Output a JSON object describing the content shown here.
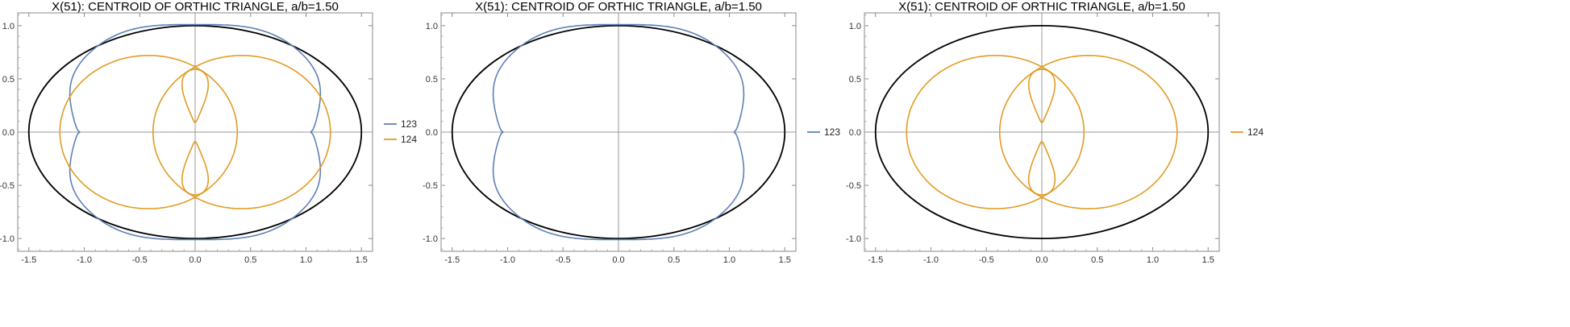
{
  "chart_data": [
    {
      "type": "line",
      "title": "X(51): CENTROID OF ORTHIC TRIANGLE, a/b=1.50",
      "xlim": [
        -1.6,
        1.6
      ],
      "ylim": [
        -1.12,
        1.12
      ],
      "xticks": [
        -1.5,
        -1.0,
        -0.5,
        0.0,
        0.5,
        1.0,
        1.5
      ],
      "xtick_labels": [
        "-1.5",
        "-1.0",
        "-0.5",
        "0.0",
        "0.5",
        "1.0",
        "1.5"
      ],
      "yticks": [
        -1.0,
        -0.5,
        0.0,
        0.5,
        1.0
      ],
      "ytick_labels": [
        "-1.0",
        "-0.5",
        "0.0",
        "0.5",
        "1.0"
      ],
      "ellipse": {
        "a": 1.5,
        "b": 1.0,
        "color": "#000000"
      },
      "series": [
        {
          "name": "123",
          "color": "#5e81b5"
        },
        {
          "name": "124",
          "color": "#e19c24"
        }
      ],
      "legend": "right"
    },
    {
      "type": "line",
      "title": "X(51): CENTROID OF ORTHIC TRIANGLE, a/b=1.50",
      "xlim": [
        -1.6,
        1.6
      ],
      "ylim": [
        -1.12,
        1.12
      ],
      "xticks": [
        -1.5,
        -1.0,
        -0.5,
        0.0,
        0.5,
        1.0,
        1.5
      ],
      "xtick_labels": [
        "-1.5",
        "-1.0",
        "-0.5",
        "0.0",
        "0.5",
        "1.0",
        "1.5"
      ],
      "yticks": [
        -1.0,
        -0.5,
        0.0,
        0.5,
        1.0
      ],
      "ytick_labels": [
        "-1.0",
        "-0.5",
        "0.0",
        "0.5",
        "1.0"
      ],
      "ellipse": {
        "a": 1.5,
        "b": 1.0,
        "color": "#000000"
      },
      "series": [
        {
          "name": "123",
          "color": "#5e81b5"
        }
      ],
      "legend": "right"
    },
    {
      "type": "line",
      "title": "X(51): CENTROID OF ORTHIC TRIANGLE, a/b=1.50",
      "xlim": [
        -1.6,
        1.6
      ],
      "ylim": [
        -1.12,
        1.12
      ],
      "xticks": [
        -1.5,
        -1.0,
        -0.5,
        0.0,
        0.5,
        1.0,
        1.5
      ],
      "xtick_labels": [
        "-1.5",
        "-1.0",
        "-0.5",
        "0.0",
        "0.5",
        "1.0",
        "1.5"
      ],
      "yticks": [
        -1.0,
        -0.5,
        0.0,
        0.5,
        1.0
      ],
      "ytick_labels": [
        "-1.0",
        "-0.5",
        "0.0",
        "0.5",
        "1.0"
      ],
      "ellipse": {
        "a": 1.5,
        "b": 1.0,
        "color": "#000000"
      },
      "series": [
        {
          "name": "124",
          "color": "#e19c24"
        }
      ],
      "legend": "right"
    }
  ]
}
